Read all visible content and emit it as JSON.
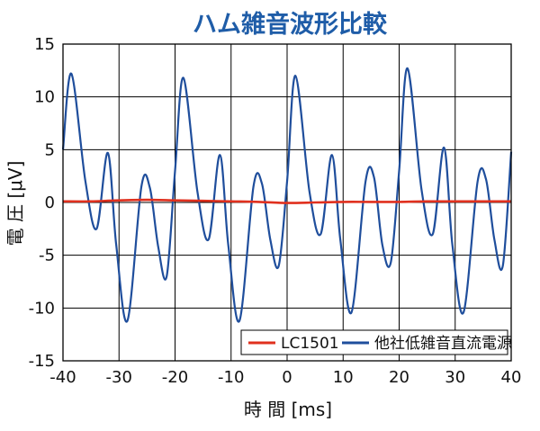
{
  "chart_data": {
    "type": "line",
    "title": "ハム雑音波形比較",
    "xlabel": "時 間 [ms]",
    "ylabel": "電 圧 [μV]",
    "xlim": [
      -40,
      40
    ],
    "ylim": [
      -15,
      15
    ],
    "x_ticks": [
      "-40",
      "-30",
      "-20",
      "-10",
      "0",
      "10",
      "20",
      "30",
      "40"
    ],
    "y_ticks": [
      "15",
      "10",
      "5",
      "0",
      "-5",
      "-10",
      "-15"
    ],
    "grid": true,
    "legend_position": "bottom-right",
    "series": [
      {
        "name": "LC1501",
        "color": "#e0301e",
        "x": [
          -40,
          -35,
          -30,
          -25,
          -20,
          -15,
          -10,
          -5,
          0,
          5,
          10,
          15,
          20,
          25,
          30,
          35,
          40
        ],
        "y": [
          0.1,
          0.1,
          0.2,
          0.25,
          0.2,
          0.15,
          0.1,
          0.05,
          -0.05,
          0.0,
          0.05,
          0.05,
          0.05,
          0.1,
          0.1,
          0.1,
          0.1
        ]
      },
      {
        "name": "他社低雑音直流電源",
        "color": "#1f4e9c",
        "x": [
          -40,
          -38.5,
          -36,
          -34,
          -32,
          -30.5,
          -28.5,
          -26,
          -24.5,
          -23,
          -21.5,
          -20,
          -18.5,
          -16,
          -14,
          -12,
          -10.5,
          -8.5,
          -6,
          -4.5,
          -3,
          -1.5,
          0,
          1.5,
          4,
          6,
          8,
          9.5,
          11.5,
          14,
          15.5,
          17,
          18.5,
          20,
          21.5,
          24,
          26,
          28,
          29.5,
          31.5,
          34,
          35.5,
          37,
          38.5,
          40
        ],
        "y": [
          5,
          12.2,
          2,
          -2.5,
          4.7,
          -4,
          -11.2,
          1.5,
          1.4,
          -4.2,
          -7,
          3,
          11.8,
          1,
          -3.5,
          4.5,
          -4,
          -11.2,
          1.5,
          1.8,
          -3.5,
          -6,
          2,
          12,
          1,
          -3,
          4.5,
          -3.5,
          -10.4,
          2,
          2.4,
          -4,
          -5.7,
          3,
          12.7,
          1.2,
          -3,
          5.2,
          -4,
          -10.4,
          2,
          2.2,
          -3.5,
          -6,
          4.8
        ]
      }
    ]
  }
}
